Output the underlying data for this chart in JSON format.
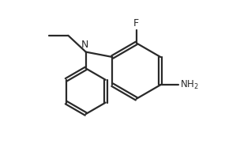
{
  "background": "#ffffff",
  "line_color": "#2a2a2a",
  "line_width": 1.6,
  "font_size": 8.5,
  "fig_width": 3.04,
  "fig_height": 1.92,
  "dpi": 100,
  "xlim": [
    0,
    9.5
  ],
  "ylim": [
    0,
    6.0
  ]
}
